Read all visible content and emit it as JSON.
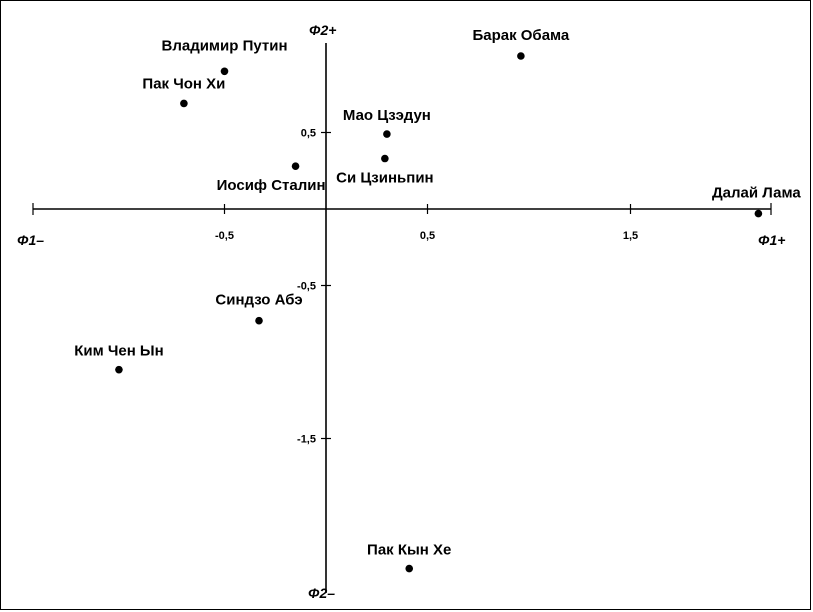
{
  "chart_data": {
    "type": "scatter",
    "title": "",
    "xlabel": "",
    "ylabel": "",
    "xlim": [
      -1.45,
      2.22
    ],
    "ylim": [
      -2.55,
      1.17
    ],
    "x_ticks": [
      -0.5,
      0.5,
      1.5
    ],
    "x_tick_labels": [
      "-0,5",
      "0,5",
      "1,5"
    ],
    "y_ticks": [
      0.5,
      -0.5,
      -1.5
    ],
    "y_tick_labels": [
      "0,5",
      "-0,5",
      "-1,5"
    ],
    "pole_labels": {
      "x_neg": "Φ1–",
      "x_pos": "Φ1+",
      "y_pos": "Φ2+",
      "y_neg": "Φ2–"
    },
    "grid": false,
    "legend": "none",
    "points": [
      {
        "label": "Владимир Путин",
        "x": -0.5,
        "y": 0.9
      },
      {
        "label": "Пак Чон Хи",
        "x": -0.7,
        "y": 0.69
      },
      {
        "label": "Барак Обама",
        "x": 0.96,
        "y": 1.0
      },
      {
        "label": "Мао Цзэдун",
        "x": 0.3,
        "y": 0.49
      },
      {
        "label": "Си Цзиньпин",
        "x": 0.29,
        "y": 0.33
      },
      {
        "label": "Иосиф Сталин",
        "x": -0.15,
        "y": 0.28
      },
      {
        "label": "Далай Лама",
        "x": 2.13,
        "y": -0.03
      },
      {
        "label": "Синдзо Абэ",
        "x": -0.33,
        "y": -0.73
      },
      {
        "label": "Ким Чен Ын",
        "x": -1.02,
        "y": -1.05
      },
      {
        "label": "Пак Кын Хе",
        "x": 0.41,
        "y": -2.35
      }
    ]
  }
}
